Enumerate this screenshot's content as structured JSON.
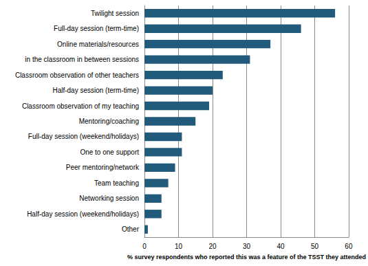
{
  "chart_data": {
    "type": "bar",
    "orientation": "horizontal",
    "x_label": "% survey respondents who reported this was a feature of the TSST they attended",
    "categories": [
      "Twilight session",
      "Full-day session (term-time)",
      "Online materials/resources",
      "in the classroom in between sessions",
      "Classroom observation of other teachers",
      "Half-day session (term-time)",
      "Classroom observation of my teaching",
      "Mentoring/coaching",
      "Full-day session (weekend/holidays)",
      "One to one support",
      "Peer mentoring/network",
      "Team teaching",
      "Networking session",
      "Half-day session (weekend/holidays)",
      "Other"
    ],
    "values": [
      56,
      46,
      37,
      31,
      23,
      20,
      19,
      15,
      11,
      11,
      9,
      7,
      5,
      5,
      1
    ],
    "color": "#215a7a",
    "xlim": [
      0,
      60
    ],
    "xticks": [
      0,
      10,
      20,
      30,
      40,
      50,
      60
    ],
    "grid": true
  }
}
